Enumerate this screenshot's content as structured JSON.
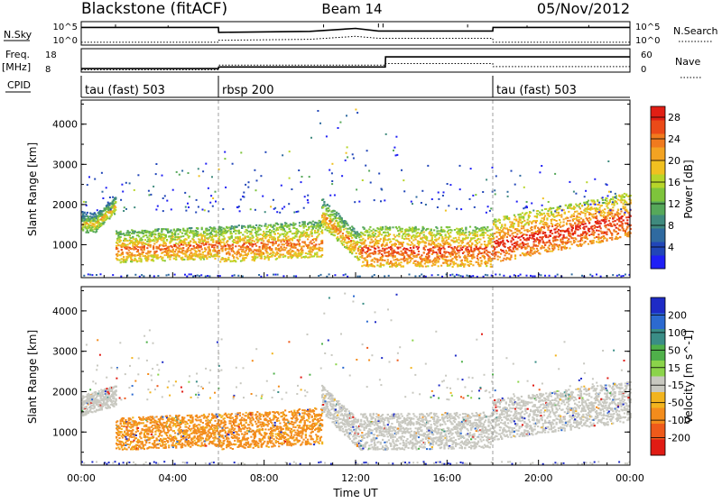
{
  "header": {
    "station": "Blackstone (fitACF)",
    "beam": "Beam 14",
    "date": "05/Nov/2012"
  },
  "strip_labels": {
    "nsky": "N.Sky",
    "nsky_ticks": [
      "10^5",
      "10^0"
    ],
    "nsearch": "N.Search",
    "nsearch_ticks": [
      "10^5",
      "10^0"
    ],
    "freq": "Freq.",
    "freq_unit": "[MHz]",
    "freq_ticks": [
      "18",
      "8"
    ],
    "nave": "Nave",
    "nave_ticks": [
      "60",
      "0"
    ],
    "cpid": "CPID"
  },
  "cpid_segments": [
    {
      "name": "tau (fast) 503",
      "start": 0,
      "end": 6
    },
    {
      "name": "rbsp 200",
      "start": 6,
      "end": 18
    },
    {
      "name": "tau (fast) 503",
      "start": 18,
      "end": 24
    }
  ],
  "x_axis": {
    "title": "Time UT",
    "ticks": [
      "00:00",
      "04:00",
      "08:00",
      "12:00",
      "16:00",
      "20:00",
      "00:00"
    ]
  },
  "y_axis": {
    "title": "Slant Range [km]",
    "ticks": [
      "1000",
      "2000",
      "3000",
      "4000"
    ]
  },
  "power_scale": {
    "title": "Power [dB]",
    "ticks": [
      "4",
      "8",
      "12",
      "16",
      "20",
      "24",
      "28"
    ],
    "colors": [
      "#1f1ff5",
      "#2146b8",
      "#2f6aa0",
      "#3f8a7e",
      "#56a85a",
      "#7ec43c",
      "#b7d52a",
      "#f0c020",
      "#f3a322",
      "#f07a1e",
      "#eb4a18",
      "#e11e14"
    ]
  },
  "velocity_scale": {
    "title": "Velocity [m s^-1]",
    "ticks": [
      "200",
      "100",
      "50",
      "15",
      "-15",
      "-50",
      "-100",
      "-200"
    ],
    "colors": [
      "#1e2bc6",
      "#2c6ad0",
      "#3a8d86",
      "#4fb04a",
      "#8bd44a",
      "#c8c8c0",
      "#f2b41e",
      "#f38c1c",
      "#ee5a1a",
      "#e01b14"
    ]
  },
  "chart_data": [
    {
      "type": "line",
      "title": "N.Sky / N.Search",
      "x": [
        0,
        6,
        6.01,
        10,
        12,
        13,
        13.01,
        18,
        18.01,
        24
      ],
      "series": [
        {
          "name": "N.Sky",
          "values": [
            0.8,
            0.8,
            0.55,
            0.6,
            0.75,
            0.62,
            0.62,
            0.62,
            0.8,
            0.8
          ]
        },
        {
          "name": "N.Search",
          "values": [
            0.05,
            0.05,
            0.15,
            0.2,
            0.35,
            0.25,
            0.25,
            0.25,
            0.05,
            0.05
          ]
        }
      ]
    },
    {
      "type": "line",
      "title": "Freq. / Nave",
      "x": [
        0,
        6,
        6.01,
        13.3,
        13.31,
        18,
        18.01,
        24
      ],
      "series": [
        {
          "name": "Freq.",
          "values": [
            9.5,
            9.5,
            10.2,
            10.2,
            14.5,
            14.5,
            14.5,
            14.5
          ]
        },
        {
          "name": "Nave",
          "values": [
            6,
            6,
            18,
            18,
            22,
            22,
            14,
            14
          ]
        }
      ]
    },
    {
      "type": "heatmap",
      "title": "Power [dB]",
      "xlabel": "Time UT",
      "ylabel": "Slant Range [km]",
      "xlim": [
        0,
        24
      ],
      "ylim": [
        180,
        4600
      ],
      "bands": [
        {
          "x": [
            0,
            0.7
          ],
          "yc": [
            1550,
            1550
          ],
          "w": 250,
          "power": 12
        },
        {
          "x": [
            0.7,
            1.5
          ],
          "yc": [
            1600,
            2000
          ],
          "w": 200,
          "power": 14
        },
        {
          "x": [
            1.5,
            6
          ],
          "yc": [
            950,
            1050
          ],
          "w": 400,
          "power": 18
        },
        {
          "x": [
            6,
            10.5
          ],
          "yc": [
            1000,
            1150
          ],
          "w": 450,
          "power": 18
        },
        {
          "x": [
            10.5,
            12.2
          ],
          "yc": [
            1800,
            900
          ],
          "w": 350,
          "power": 16
        },
        {
          "x": [
            12.2,
            18
          ],
          "yc": [
            950,
            950
          ],
          "w": 500,
          "power": 20
        },
        {
          "x": [
            18,
            24
          ],
          "yc": [
            1100,
            1750
          ],
          "w": 550,
          "power": 22
        }
      ]
    },
    {
      "type": "heatmap",
      "title": "Velocity [m s^-1]",
      "xlabel": "Time UT",
      "ylabel": "Slant Range [km]",
      "xlim": [
        0,
        24
      ],
      "ylim": [
        180,
        4600
      ],
      "bands": [
        {
          "x": [
            0,
            1.5
          ],
          "yc": [
            1650,
            1900
          ],
          "w": 250,
          "velocity": 0
        },
        {
          "x": [
            1.5,
            6
          ],
          "yc": [
            950,
            1050
          ],
          "w": 400,
          "velocity": -60
        },
        {
          "x": [
            6,
            10.5
          ],
          "yc": [
            1000,
            1150
          ],
          "w": 450,
          "velocity": -60
        },
        {
          "x": [
            10.5,
            12.2
          ],
          "yc": [
            1800,
            900
          ],
          "w": 350,
          "velocity": 0
        },
        {
          "x": [
            12.2,
            18
          ],
          "yc": [
            1000,
            1050
          ],
          "w": 450,
          "velocity": 0
        },
        {
          "x": [
            18,
            24
          ],
          "yc": [
            1300,
            1750
          ],
          "w": 500,
          "velocity": 0
        }
      ]
    }
  ]
}
